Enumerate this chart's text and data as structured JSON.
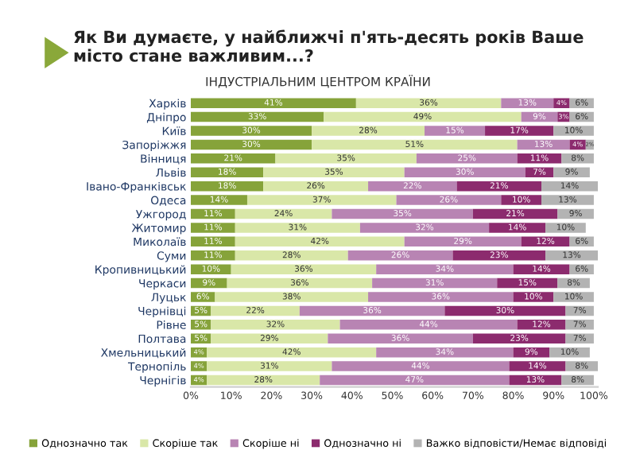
{
  "chart_data": {
    "type": "bar",
    "orientation": "horizontal",
    "stacked": true,
    "title": "Як Ви думаєте, у найближчі п'ять-десять років Ваше місто стане важливим...?",
    "subtitle": "ІНДУСТРІАЛЬНИМ ЦЕНТРОМ КРАЇНИ",
    "categories": [
      "Харків",
      "Дніпро",
      "Київ",
      "Запоріжжя",
      "Вінниця",
      "Львів",
      "Івано-Франківськ",
      "Одеса",
      "Ужгород",
      "Житомир",
      "Миколаїв",
      "Суми",
      "Кропивницький",
      "Черкаси",
      "Луцьк",
      "Чернівці",
      "Рівне",
      "Полтава",
      "Хмельницький",
      "Тернопіль",
      "Чернігів"
    ],
    "series": [
      {
        "name": "Однозначно так",
        "color": "#86a33a",
        "values": [
          41,
          33,
          30,
          30,
          21,
          18,
          18,
          14,
          11,
          11,
          11,
          11,
          10,
          9,
          6,
          5,
          5,
          5,
          4,
          4,
          4
        ]
      },
      {
        "name": "Скоріше так",
        "color": "#d9e7a8",
        "values": [
          36,
          49,
          28,
          51,
          35,
          35,
          26,
          37,
          24,
          31,
          42,
          28,
          36,
          36,
          38,
          22,
          32,
          29,
          42,
          31,
          28
        ]
      },
      {
        "name": "Скоріше ні",
        "color": "#b884b3",
        "values": [
          13,
          9,
          15,
          13,
          25,
          30,
          22,
          26,
          35,
          32,
          29,
          26,
          34,
          31,
          36,
          36,
          44,
          36,
          34,
          44,
          47
        ]
      },
      {
        "name": "Однозначно ні",
        "color": "#8c2b6e",
        "values": [
          4,
          3,
          17,
          4,
          11,
          7,
          21,
          10,
          21,
          14,
          12,
          23,
          14,
          15,
          10,
          30,
          12,
          23,
          9,
          14,
          13
        ]
      },
      {
        "name": "Важко відповісти/Немає відповіді",
        "color": "#b3b3b3",
        "values": [
          6,
          6,
          10,
          2,
          8,
          9,
          14,
          13,
          9,
          10,
          6,
          13,
          6,
          8,
          10,
          7,
          7,
          7,
          10,
          8,
          8
        ]
      }
    ],
    "value_labels": [
      [
        "41%",
        "33%",
        "30%",
        "30%",
        "21%",
        "18%",
        "18%",
        "14%",
        "11%",
        "11%",
        "11%",
        "11%",
        "10%",
        "9%",
        "6%",
        "5%",
        "5%",
        "5%",
        "4%",
        "4%",
        "4%"
      ],
      [
        "36%",
        "49%",
        "28%",
        "51%",
        "35%",
        "35%",
        "26%",
        "37%",
        "24%",
        "31%",
        "42%",
        "28%",
        "36%",
        "36%",
        "38%",
        "22%",
        "32%",
        "29%",
        "42%",
        "31%",
        "28%"
      ],
      [
        "13%",
        "9%",
        "15%",
        "13%",
        "25%",
        "30%",
        "22%",
        "26%",
        "35%",
        "32%",
        "29%",
        "26%",
        "34%",
        "31%",
        "36%",
        "36%",
        "44%",
        "36%",
        "34%",
        "44%",
        "47%"
      ],
      [
        "4%",
        "3%",
        "17%",
        "4%",
        "11%",
        "7%",
        "21%",
        "10%",
        "21%",
        "14%",
        "12%",
        "23%",
        "14%",
        "15%",
        "10%",
        "30%",
        "12%",
        "23%",
        "9%",
        "14%",
        "13%"
      ],
      [
        "6%",
        "6%",
        "10%",
        "2%",
        "8%",
        "9%",
        "14%",
        "13%",
        "9%",
        "10%",
        "6%",
        "13%",
        "6%",
        "8%",
        "10%",
        "7%",
        "7%",
        "7%",
        "10%",
        "8%",
        "8%"
      ]
    ],
    "xlim": [
      0,
      101
    ],
    "xticks": [
      {
        "value": 0,
        "label": "0%"
      },
      {
        "value": 10,
        "label": "10%"
      },
      {
        "value": 20,
        "label": "20%"
      },
      {
        "value": 30,
        "label": "30%"
      },
      {
        "value": 40,
        "label": "40%"
      },
      {
        "value": 50,
        "label": "50%"
      },
      {
        "value": 60,
        "label": "60%"
      },
      {
        "value": 70,
        "label": "70%"
      },
      {
        "value": 80,
        "label": "80%"
      },
      {
        "value": 90,
        "label": "90%"
      },
      {
        "value": 100,
        "label": "100%"
      }
    ],
    "grid": false,
    "legend": "bottom"
  }
}
